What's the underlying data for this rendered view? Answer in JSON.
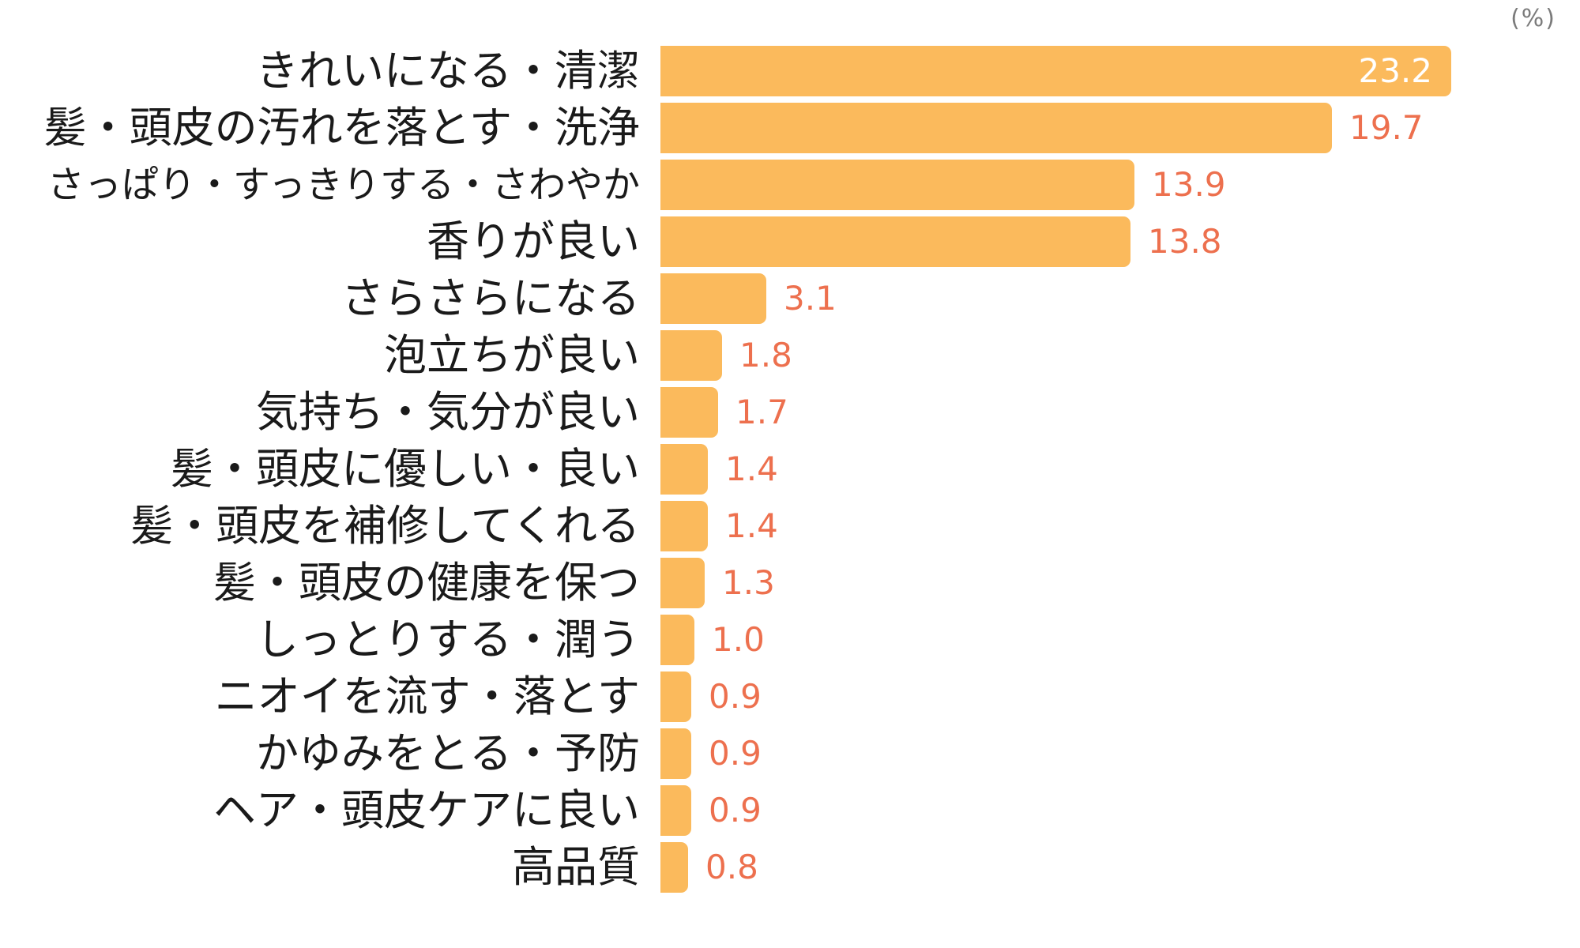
{
  "unit": "(%)",
  "colors": {
    "bar_fill": "#FBBA5C",
    "value_label_outside": "#ED704E",
    "value_label_inside": "#FFFFFF",
    "category_label": "#1A1A1A",
    "unit_label": "#7B7B7B",
    "background": "#FFFFFF"
  },
  "chart_data": {
    "type": "bar",
    "orientation": "horizontal",
    "title": "",
    "xlabel": "",
    "ylabel": "",
    "unit": "(%)",
    "xlim": [
      0,
      24
    ],
    "grid": false,
    "legend": false,
    "categories": [
      "きれいになる・清潔",
      "髪・頭皮の汚れを落とす・洗浄",
      "さっぱり・すっきりする・さわやか",
      "香りが良い",
      "さらさらになる",
      "泡立ちが良い",
      "気持ち・気分が良い",
      "髪・頭皮に優しい・良い",
      "髪・頭皮を補修してくれる",
      "髪・頭皮の健康を保つ",
      "しっとりする・潤う",
      "ニオイを流す・落とす",
      "かゆみをとる・予防",
      "ヘア・頭皮ケアに良い",
      "高品質"
    ],
    "values": [
      23.2,
      19.7,
      13.9,
      13.8,
      3.1,
      1.8,
      1.7,
      1.4,
      1.4,
      1.3,
      1.0,
      0.9,
      0.9,
      0.9,
      0.8
    ],
    "value_labels": [
      "23.2",
      "19.7",
      "13.9",
      "13.8",
      "3.1",
      "1.8",
      "1.7",
      "1.4",
      "1.4",
      "1.3",
      "1.0",
      "0.9",
      "0.9",
      "0.9",
      "0.8"
    ],
    "value_label_position_first_bar": "inside",
    "value_label_position_others": "outside"
  }
}
